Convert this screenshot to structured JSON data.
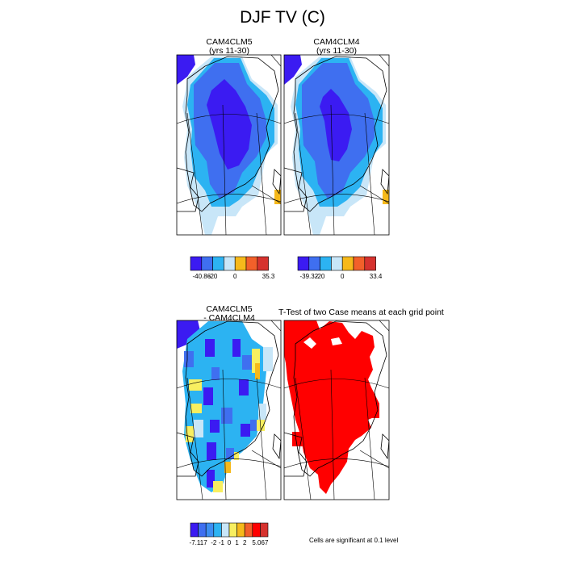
{
  "page_title": "DJF TV (C)",
  "panels": {
    "p1": {
      "title": "CAM4CLM5",
      "subtitle": "(yrs 11-30)"
    },
    "p2": {
      "title": "CAM4CLM4",
      "subtitle": "(yrs 11-30)"
    },
    "p3": {
      "title": "CAM4CLM5",
      "subtitle": "- CAM4CLM4"
    },
    "p4": {
      "title": "T-Test of two Case means at each grid point"
    }
  },
  "note": "Cells are significant at 0.1 level",
  "colorbars": {
    "cb1": {
      "colors": [
        "#3b1bf2",
        "#3f6ff0",
        "#2cb3f2",
        "#c8e6f8",
        "#f6b91b",
        "#f2602a",
        "#d6322e"
      ],
      "labels": [
        "-40.86",
        "-20",
        "0",
        "35.3"
      ]
    },
    "cb2": {
      "colors": [
        "#3b1bf2",
        "#3f6ff0",
        "#2cb3f2",
        "#c8e6f8",
        "#f6b91b",
        "#f2602a",
        "#d6322e"
      ],
      "labels": [
        "-39.32",
        "-20",
        "0",
        "33.4"
      ]
    },
    "cb3": {
      "colors": [
        "#3b1bf2",
        "#3f6ff0",
        "#3c8ef2",
        "#2cb3f2",
        "#c8e6f8",
        "#f8ef60",
        "#f6b91b",
        "#f2602a",
        "#ff0000",
        "#d6322e"
      ],
      "labels": [
        "-7.117",
        "-2",
        "-1",
        "0",
        "1",
        "2",
        "5.067"
      ]
    }
  },
  "chart_data": {
    "type": "heatmap",
    "title": "DJF TV (C)",
    "region": "Greenland",
    "panels": [
      {
        "name": "CAM4CLM5 (yrs 11-30)",
        "range": [
          -40.86,
          35.3
        ]
      },
      {
        "name": "CAM4CLM4 (yrs 11-30)",
        "range": [
          -39.32,
          33.4
        ]
      },
      {
        "name": "CAM4CLM5 - CAM4CLM4",
        "range": [
          -7.117,
          5.067
        ]
      },
      {
        "name": "T-Test of two Case means at each grid point",
        "significance_level": 0.1
      }
    ]
  }
}
